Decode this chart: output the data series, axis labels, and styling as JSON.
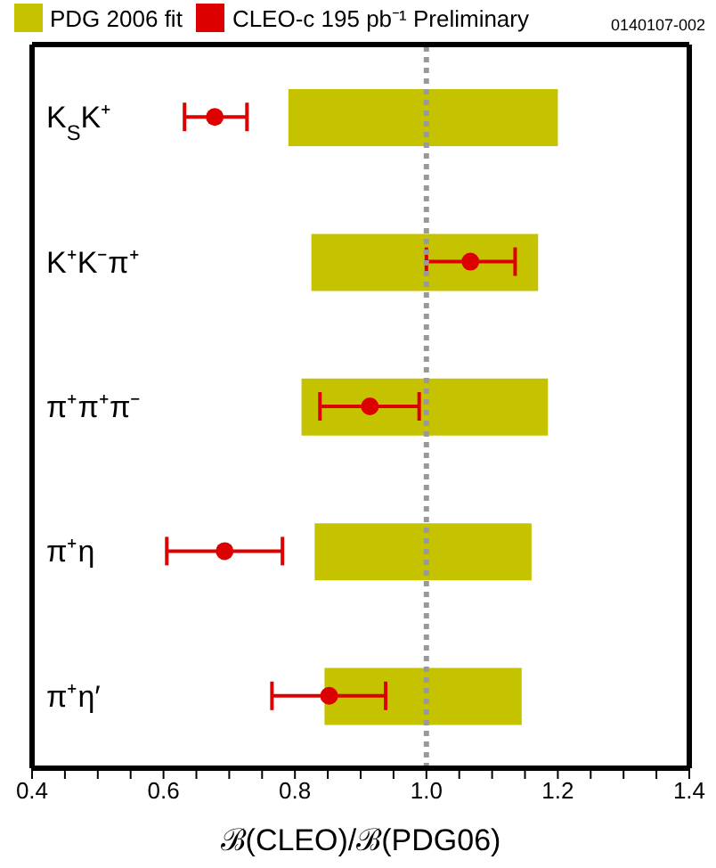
{
  "chart_data": {
    "type": "bar",
    "orientation": "horizontal",
    "xlabel": "ℬ(CLEO)/ℬ(PDG06)",
    "annotations": [
      "0140107-002"
    ],
    "categories": [
      "K$_{S}$K⁺",
      "K⁺K⁻π⁺",
      "π⁺π⁺π⁻",
      "π⁺η",
      "π⁺η′"
    ],
    "series": [
      {
        "name": "PDG 2006 fit",
        "type": "bar",
        "color": "#c5c200",
        "base": [
          0.79,
          0.825,
          0.81,
          0.83,
          0.845
        ],
        "values": [
          0.41,
          0.345,
          0.375,
          0.33,
          0.3
        ]
      },
      {
        "name": "CLEO-c 195 pb⁻¹ Preliminary",
        "type": "scatter",
        "color": "#dd0000",
        "marker": "circle",
        "x": [
          "K$_{S}$K⁺",
          "K⁺K⁻π⁺",
          "π⁺π⁺π⁻",
          "π⁺η",
          "π⁺η′"
        ],
        "values": [
          0.678,
          1.067,
          0.914,
          0.693,
          0.852
        ],
        "errors": [
          [
            0.632,
            0.727
          ],
          [
            1.0,
            1.135
          ],
          [
            0.838,
            0.989
          ],
          [
            0.605,
            0.781
          ],
          [
            0.765,
            0.938
          ]
        ]
      }
    ],
    "xlim": [
      0.4,
      1.4
    ],
    "xticks": [
      0.4,
      {
        "value": 0.45,
        "label": null
      },
      {
        "value": 0.5,
        "label": null
      },
      {
        "value": 0.55,
        "label": null
      },
      0.6,
      {
        "value": 0.65,
        "label": null
      },
      {
        "value": 0.7,
        "label": null
      },
      {
        "value": 0.75,
        "label": null
      },
      0.8,
      {
        "value": 0.85,
        "label": null
      },
      {
        "value": 0.9,
        "label": null
      },
      {
        "value": 0.95,
        "label": null
      },
      {
        "value": 1.0,
        "label": "1.0"
      },
      {
        "value": 1.05,
        "label": null
      },
      {
        "value": 1.1,
        "label": null
      },
      {
        "value": 1.15,
        "label": null
      },
      1.2,
      {
        "value": 1.25,
        "label": null
      },
      {
        "value": 1.3,
        "label": null
      },
      {
        "value": 1.35,
        "label": null
      },
      1.4
    ],
    "ref_lines": [
      {
        "axis": "x",
        "value": 1.0,
        "color": "#999999",
        "line_style": "dotted"
      }
    ],
    "legend": "top",
    "grid": false
  }
}
